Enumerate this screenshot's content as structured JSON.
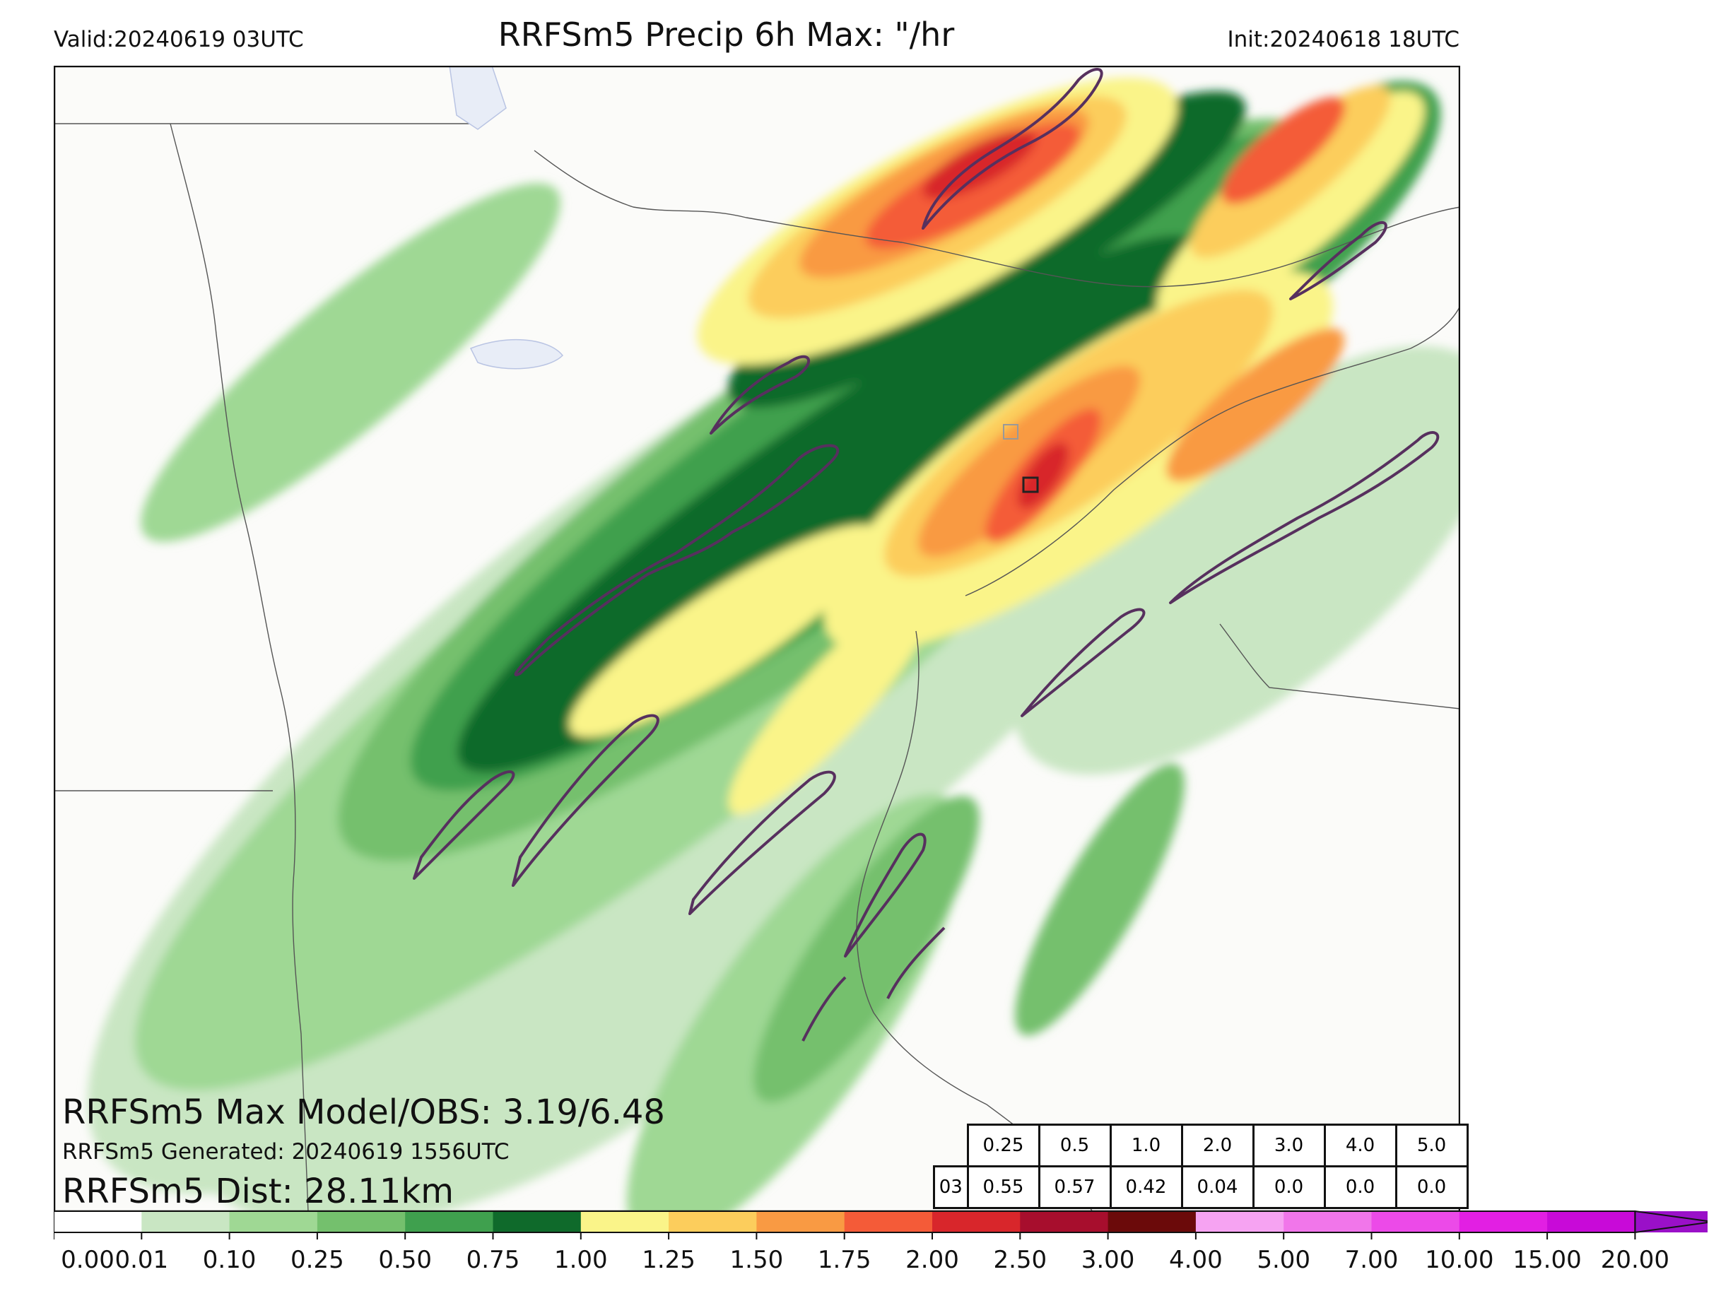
{
  "header": {
    "valid": "Valid:20240619 03UTC",
    "title": "RRFSm5 Precip 6h Max: \"/hr",
    "init": "Init:20240618 18UTC"
  },
  "stats": {
    "max_model_obs": "RRFSm5 Max Model/OBS: 3.19/6.48",
    "generated": "RRFSm5 Generated: 20240619 1556UTC",
    "distance": "RRFSm5 Dist: 28.11km"
  },
  "score_table": {
    "thresholds": [
      "0.25",
      "0.5",
      "1.0",
      "2.0",
      "3.0",
      "4.0",
      "5.0"
    ],
    "row_label": "03",
    "scores": [
      "0.55",
      "0.57",
      "0.42",
      "0.04",
      "0.0",
      "0.0",
      "0.0"
    ]
  },
  "colorbar": {
    "tick_labels": [
      "0.00",
      "0.01",
      "0.10",
      "0.25",
      "0.50",
      "0.75",
      "1.00",
      "1.25",
      "1.50",
      "1.75",
      "2.00",
      "2.50",
      "3.00",
      "4.00",
      "5.00",
      "7.00",
      "10.00",
      "15.00",
      "20.00"
    ],
    "colors": [
      "#ffffff",
      "#c9e6c3",
      "#9fd894",
      "#74c06d",
      "#3fa04e",
      "#0f6a2b",
      "#faf489",
      "#fccd5c",
      "#f99a43",
      "#f45b38",
      "#d8262b",
      "#a70e2d",
      "#6b0a0a",
      "#f6a3f2",
      "#f176ea",
      "#ec4ae8",
      "#e21fe3",
      "#c80ad8",
      "#9a10c8"
    ]
  },
  "map_colors": {
    "background": "#fbfbf9",
    "contour": "#57305e",
    "borders": "#555555",
    "water": "#b9c4e3"
  }
}
